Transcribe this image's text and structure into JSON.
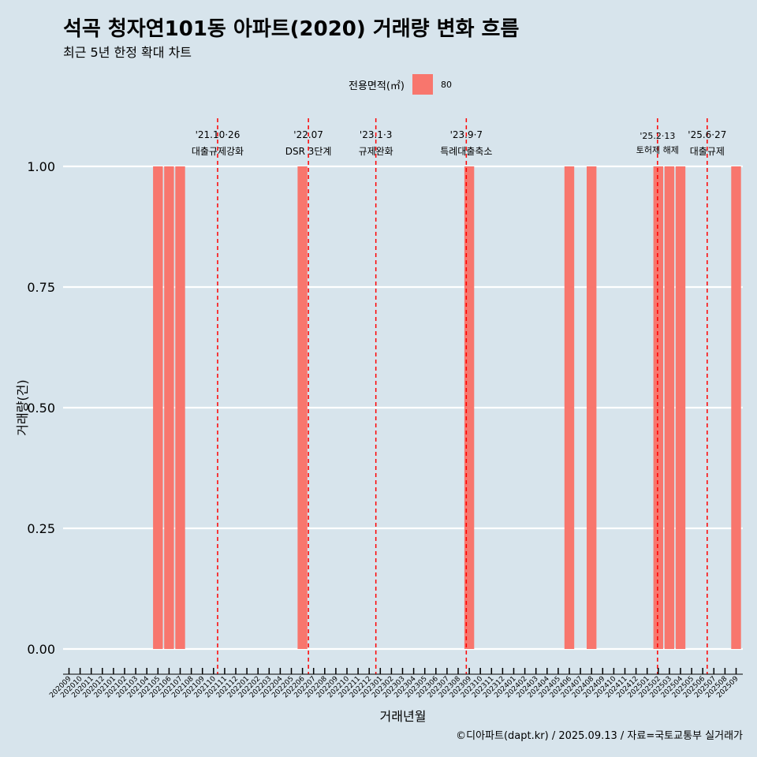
{
  "title": "석곡 청자연101동 아파트(2020) 거래량 변화 흐름",
  "subtitle": "최근 5년 한정 확대 차트",
  "legend": {
    "title": "전용면적(㎡)",
    "label": "80",
    "color": "#f8766d"
  },
  "caption": "©디아파트(dapt.kr) / 2025.09.13 / 자료=국토교통부 실거래가",
  "chart_data": {
    "type": "bar",
    "xlabel": "거래년월",
    "ylabel": "거래량(건)",
    "ylim": [
      0,
      1
    ],
    "yticks": [
      "0.00",
      "0.25",
      "0.50",
      "0.75",
      "1.00"
    ],
    "categories": [
      "202009",
      "202010",
      "202011",
      "202012",
      "202101",
      "202102",
      "202103",
      "202104",
      "202105",
      "202106",
      "202107",
      "202108",
      "202109",
      "202110",
      "202111",
      "202112",
      "202201",
      "202202",
      "202203",
      "202204",
      "202205",
      "202206",
      "202207",
      "202208",
      "202209",
      "202210",
      "202211",
      "202212",
      "202301",
      "202302",
      "202303",
      "202304",
      "202305",
      "202306",
      "202307",
      "202308",
      "202309",
      "202310",
      "202311",
      "202312",
      "202401",
      "202402",
      "202403",
      "202404",
      "202405",
      "202406",
      "202407",
      "202408",
      "202409",
      "202410",
      "202411",
      "202412",
      "202501",
      "202502",
      "202503",
      "202504",
      "202505",
      "202506",
      "202507",
      "202508",
      "202509"
    ],
    "series": [
      {
        "name": "80",
        "color": "#f8766d",
        "values": [
          0,
          0,
          0,
          0,
          0,
          0,
          0,
          0,
          1,
          1,
          1,
          0,
          0,
          0,
          0,
          0,
          0,
          0,
          0,
          0,
          0,
          1,
          0,
          0,
          0,
          0,
          0,
          0,
          0,
          0,
          0,
          0,
          0,
          0,
          0,
          0,
          1,
          0,
          0,
          0,
          0,
          0,
          0,
          0,
          0,
          1,
          0,
          1,
          0,
          0,
          0,
          0,
          0,
          1,
          1,
          1,
          0,
          0,
          0,
          0,
          1
        ]
      }
    ],
    "annotations": [
      {
        "date": "2021-10-26",
        "line1": "'21.10·26",
        "line2": "대출규제강화"
      },
      {
        "date": "2022-07-01",
        "line1": "'22.07",
        "line2": "DSR 3단계"
      },
      {
        "date": "2023-01-03",
        "line1": "'23.1·3",
        "line2": "규제완화"
      },
      {
        "date": "2023-09-07",
        "line1": "'23.9·7",
        "line2": "특례대출축소"
      },
      {
        "date": "2025-02-13",
        "line1": "'25.2·13",
        "line2": "토허제 해제"
      },
      {
        "date": "2025-06-27",
        "line1": "'25.6·27",
        "line2": "대출규제"
      }
    ],
    "annotation_color": "#ff0000",
    "grid": true,
    "legend_position": "top"
  }
}
